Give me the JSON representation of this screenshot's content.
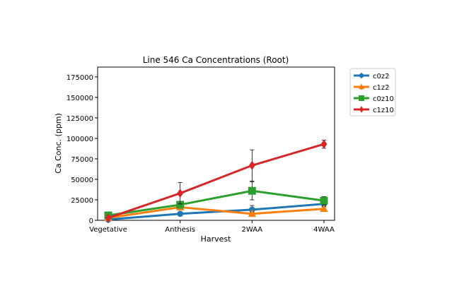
{
  "chart_data": {
    "type": "line",
    "title": "Line 546 Ca Concentrations (Root)",
    "xlabel": "Harvest",
    "ylabel": "Ca Conc. (ppm)",
    "categories": [
      "Vegetative",
      "Anthesis",
      "2WAA",
      "4WAA"
    ],
    "ylim": [
      0,
      187000
    ],
    "yticks": [
      0,
      25000,
      50000,
      75000,
      100000,
      125000,
      150000,
      175000
    ],
    "ytick_labels": [
      "0",
      "25000",
      "50000",
      "75000",
      "100000",
      "125000",
      "150000",
      "175000"
    ],
    "grid": false,
    "legend_position": "outside-top-right",
    "series": [
      {
        "name": "c0z2",
        "color": "#1f77b4",
        "marker": "circle",
        "values": [
          1000,
          8000,
          13000,
          20000
        ],
        "errors": [
          500,
          2000,
          5000,
          3000
        ]
      },
      {
        "name": "c1z2",
        "color": "#ff7f0e",
        "marker": "triangle",
        "values": [
          3000,
          16000,
          8000,
          14000
        ],
        "errors": [
          500,
          3000,
          2000,
          2500
        ]
      },
      {
        "name": "c0z10",
        "color": "#2ca02c",
        "marker": "square",
        "values": [
          6000,
          19000,
          36000,
          24000
        ],
        "errors": [
          800,
          4000,
          11000,
          5000
        ]
      },
      {
        "name": "c1z10",
        "color": "#d62728",
        "marker": "diamond",
        "values": [
          3000,
          33000,
          67000,
          93000
        ],
        "errors": [
          600,
          13000,
          19000,
          5000
        ]
      }
    ]
  }
}
